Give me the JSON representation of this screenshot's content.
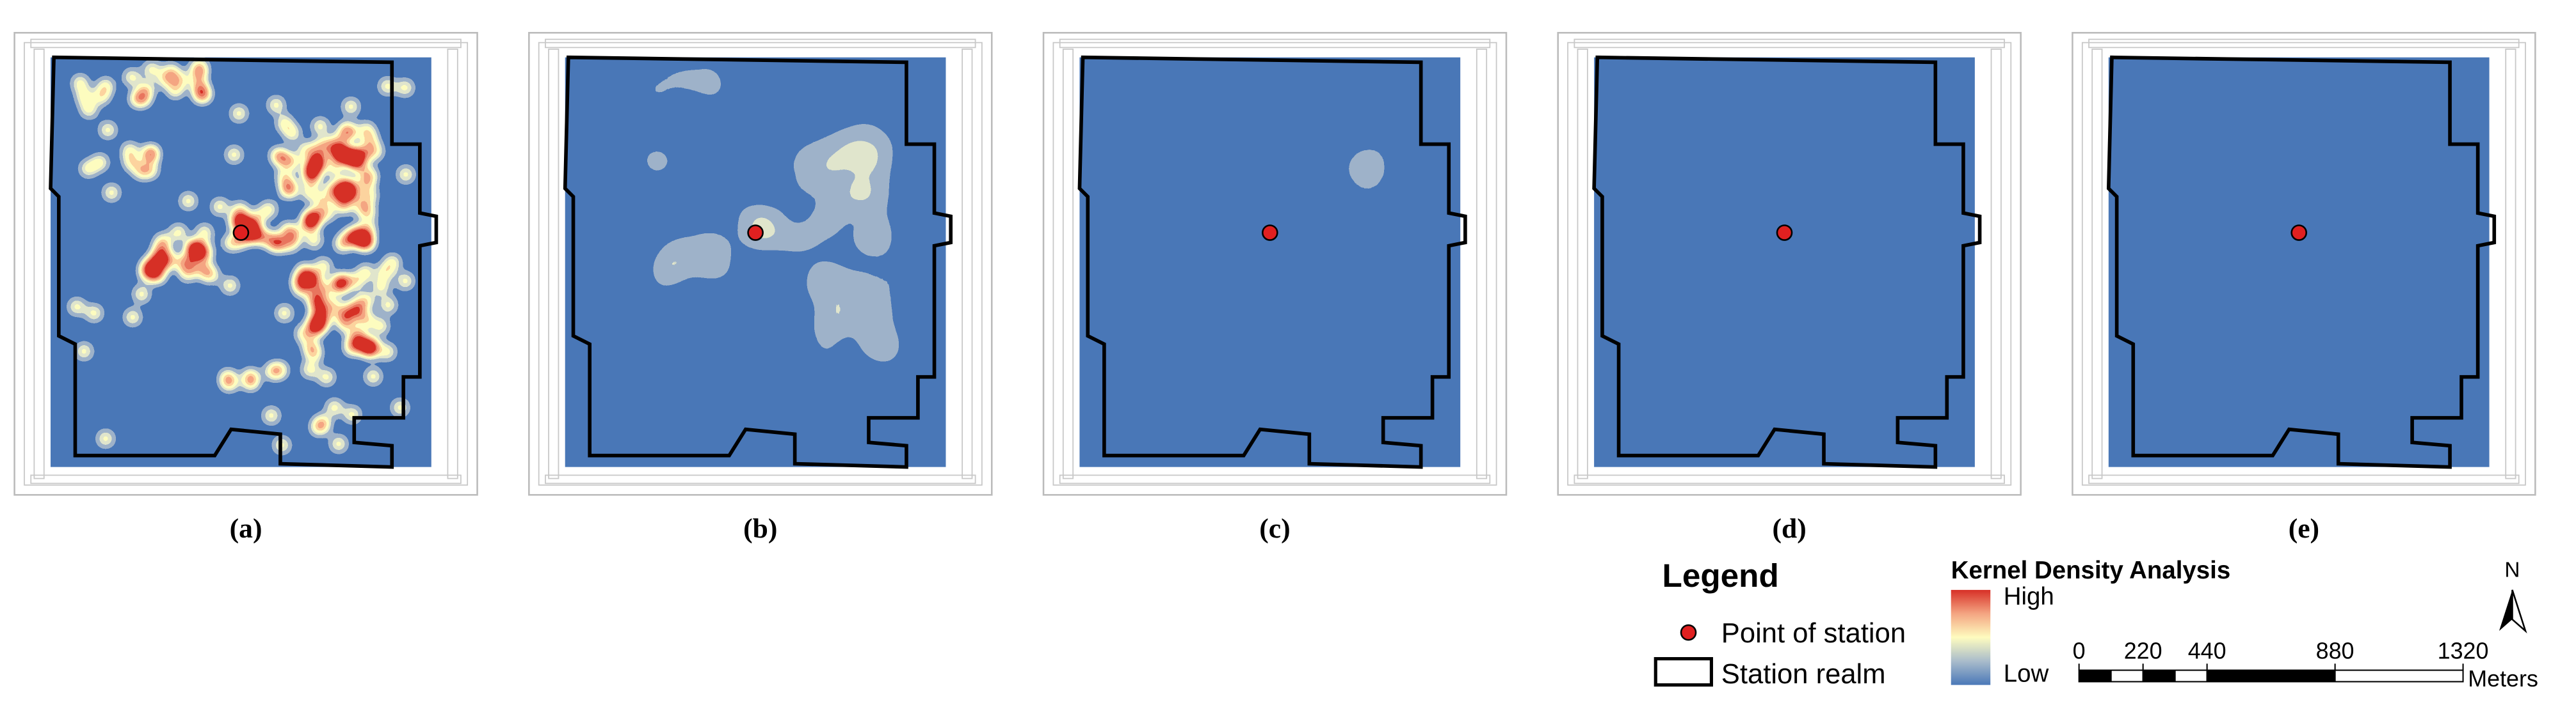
{
  "panels": [
    {
      "label": "(a)"
    },
    {
      "label": "(b)"
    },
    {
      "label": "(c)"
    },
    {
      "label": "(d)"
    },
    {
      "label": "(e)"
    }
  ],
  "legend": {
    "title": "Legend",
    "items": [
      "Point of station",
      "Station realm"
    ]
  },
  "density_legend": {
    "title": "Kernel Density Analysis",
    "high": "High",
    "low": "Low"
  },
  "scale_bar": {
    "ticks": [
      0,
      220,
      440,
      880,
      1320
    ],
    "unit": "Meters"
  },
  "north": "N"
}
